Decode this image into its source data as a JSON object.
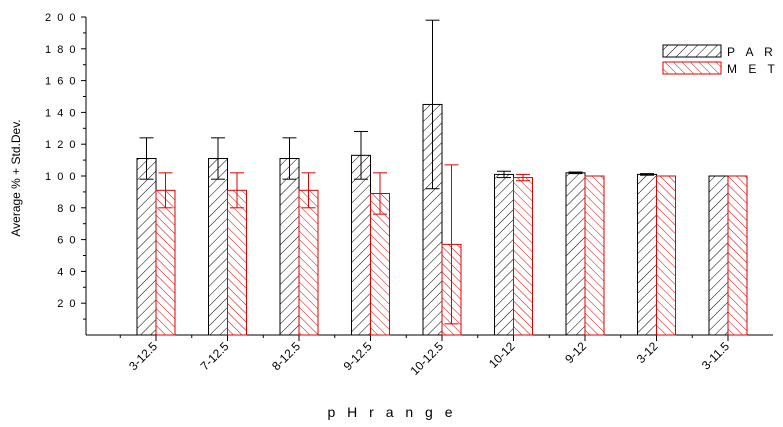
{
  "chart_data": {
    "type": "bar",
    "xlabel": "p H   r a n g e",
    "ylabel": "Average % + Std.Dev.",
    "ylim": [
      0,
      200
    ],
    "yticks": [
      20,
      40,
      60,
      80,
      100,
      120,
      140,
      160,
      180,
      200
    ],
    "ytick_labels": [
      "2 0",
      "4 0",
      "6 0",
      "8 0",
      "1 0 0",
      "1 2 0",
      "1 4 0",
      "1 6 0",
      "1 8 0",
      "2 0 0"
    ],
    "categories": [
      "3-12.5",
      "7-12.5",
      "8-12.5",
      "9-12.5",
      "10-12.5",
      "10-12",
      "9-12",
      "3-12",
      "3-11.5"
    ],
    "legend_position": "top-right",
    "series": [
      {
        "name": "P A R",
        "color": "#000000",
        "hatch": "forward-diagonal",
        "values": [
          111,
          111,
          111,
          113,
          145,
          101,
          102,
          101,
          100
        ],
        "errors": [
          13,
          13,
          13,
          15,
          53,
          2,
          0.5,
          0.5,
          0
        ]
      },
      {
        "name": "M E T",
        "color": "#e00000",
        "hatch": "backward-diagonal",
        "values": [
          91,
          91,
          91,
          89,
          57,
          99,
          100,
          100,
          100
        ],
        "errors": [
          11,
          11,
          11,
          13,
          50,
          2,
          0,
          0,
          0
        ]
      }
    ]
  }
}
